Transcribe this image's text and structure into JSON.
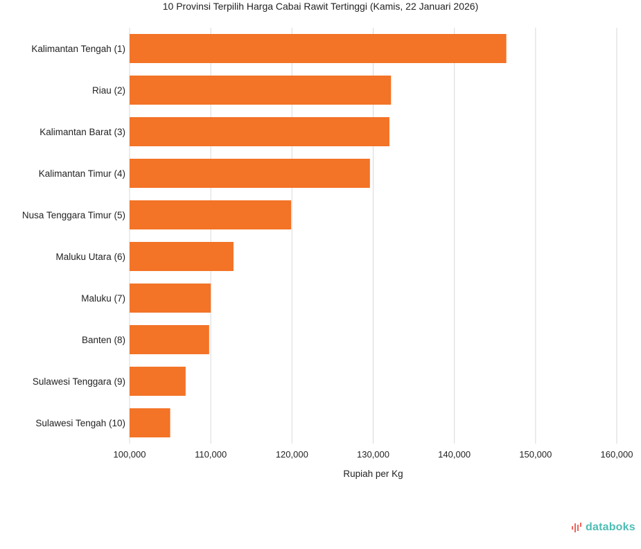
{
  "chart_data": {
    "type": "bar",
    "orientation": "horizontal",
    "title": "10 Provinsi Terpilih Harga Cabai Rawit Tertinggi (Kamis, 22 Januari 2026)",
    "xlabel": "Rupiah per Kg",
    "ylabel": "",
    "categories": [
      "Kalimantan Tengah (1)",
      "Riau (2)",
      "Kalimantan Barat (3)",
      "Kalimantan Timur (4)",
      "Nusa Tenggara Timur (5)",
      "Maluku Utara (6)",
      "Maluku (7)",
      "Banten (8)",
      "Sulawesi Tenggara (9)",
      "Sulawesi Tengah (10)"
    ],
    "values": [
      146400,
      132200,
      132000,
      129600,
      119900,
      112800,
      110000,
      109800,
      106900,
      105000
    ],
    "xlim": [
      100000,
      160000
    ],
    "ticks": [
      100000,
      110000,
      120000,
      130000,
      140000,
      150000,
      160000
    ],
    "tick_labels": [
      "100,000",
      "110,000",
      "120,000",
      "130,000",
      "140,000",
      "150,000",
      "160,000"
    ],
    "grid": true,
    "color": "#f37327"
  },
  "brand": "databoks"
}
